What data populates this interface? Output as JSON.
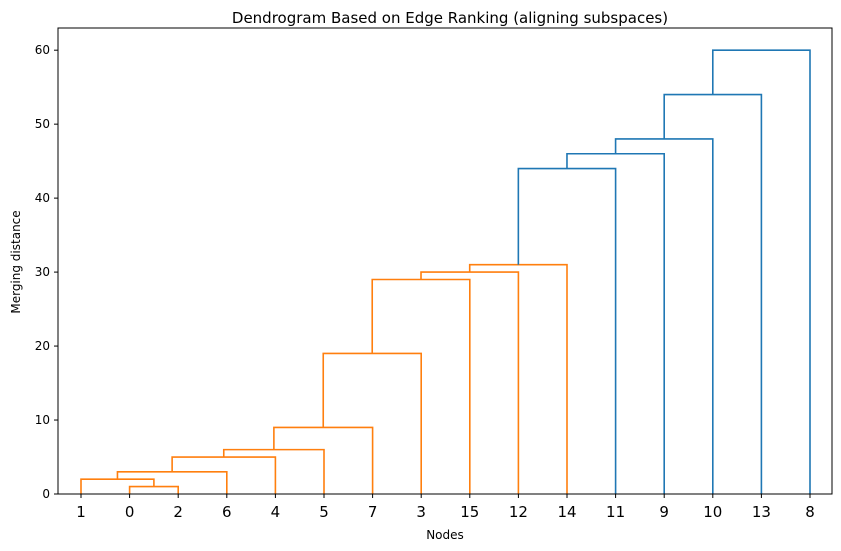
{
  "chart_data": {
    "type": "dendrogram",
    "title": "Dendrogram Based on Edge Ranking (aligning subspaces)",
    "xlabel": "Nodes",
    "ylabel": "Merging distance",
    "ylim": [
      0,
      63
    ],
    "yticks": [
      0,
      10,
      20,
      30,
      40,
      50,
      60
    ],
    "leaf_order": [
      "1",
      "0",
      "2",
      "6",
      "4",
      "5",
      "7",
      "3",
      "15",
      "12",
      "14",
      "11",
      "9",
      "10",
      "13",
      "8"
    ],
    "colors": {
      "cluster": "#ff7f0e",
      "above_threshold": "#1f77b4"
    },
    "merges": [
      {
        "left": "0",
        "right": "2",
        "height": 1,
        "color": "cluster"
      },
      {
        "left": "1",
        "right": "0+2",
        "height": 2,
        "color": "cluster"
      },
      {
        "left": "1+0+2",
        "right": "6",
        "height": 3,
        "color": "cluster"
      },
      {
        "left": "1+0+2+6",
        "right": "4",
        "height": 5,
        "color": "cluster"
      },
      {
        "left": "1+0+2+6+4",
        "right": "5",
        "height": 6,
        "color": "cluster"
      },
      {
        "left": "1+0+2+6+4+5",
        "right": "7",
        "height": 9,
        "color": "cluster"
      },
      {
        "left": "1+0+2+6+4+5+7",
        "right": "3",
        "height": 19,
        "color": "cluster"
      },
      {
        "left": "1+0+2+6+4+5+7+3",
        "right": "15",
        "height": 29,
        "color": "cluster"
      },
      {
        "left": "1+0+2+6+4+5+7+3+15",
        "right": "12",
        "height": 30,
        "color": "cluster"
      },
      {
        "left": "1+0+2+6+4+5+7+3+15+12",
        "right": "14",
        "height": 31,
        "color": "cluster"
      },
      {
        "left": "cluster",
        "right": "11",
        "height": 44,
        "color": "above_threshold"
      },
      {
        "left": "cluster+11",
        "right": "9",
        "height": 46,
        "color": "above_threshold"
      },
      {
        "left": "cluster+11+9",
        "right": "10",
        "height": 48,
        "color": "above_threshold"
      },
      {
        "left": "cluster+11+9+10",
        "right": "13",
        "height": 54,
        "color": "above_threshold"
      },
      {
        "left": "cluster+11+9+10+13",
        "right": "8",
        "height": 60,
        "color": "above_threshold"
      }
    ]
  }
}
